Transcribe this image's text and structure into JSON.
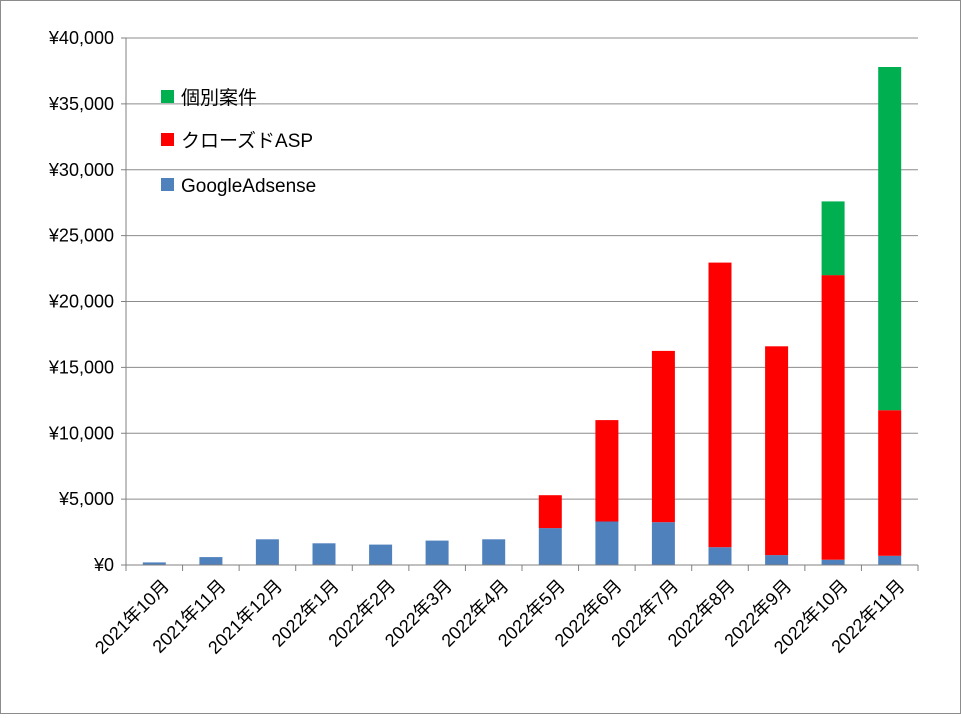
{
  "chart_data": {
    "type": "bar",
    "stacked": true,
    "categories": [
      "2021年10月",
      "2021年11月",
      "2021年12月",
      "2022年1月",
      "2022年2月",
      "2022年3月",
      "2022年4月",
      "2022年5月",
      "2022年6月",
      "2022年7月",
      "2022年8月",
      "2022年9月",
      "2022年10月",
      "2022年11月"
    ],
    "series": [
      {
        "name": "GoogleAdsense",
        "color": "#4f81bd",
        "values": [
          200,
          600,
          1950,
          1650,
          1550,
          1850,
          1950,
          2800,
          3300,
          3250,
          1350,
          750,
          400,
          700
        ]
      },
      {
        "name": "クローズドASP",
        "color": "#ff0000",
        "values": [
          0,
          0,
          0,
          0,
          0,
          0,
          0,
          2500,
          7700,
          13000,
          21600,
          15850,
          21600,
          11050
        ]
      },
      {
        "name": "個別案件",
        "color": "#00b050",
        "values": [
          0,
          0,
          0,
          0,
          0,
          0,
          0,
          0,
          0,
          0,
          0,
          0,
          5600,
          26050
        ]
      }
    ],
    "ylim": [
      0,
      40000
    ],
    "yticks": [
      0,
      5000,
      10000,
      15000,
      20000,
      25000,
      30000,
      35000,
      40000
    ],
    "ytick_labels": [
      "¥0",
      "¥5,000",
      "¥10,000",
      "¥15,000",
      "¥20,000",
      "¥25,000",
      "¥30,000",
      "¥35,000",
      "¥40,000"
    ],
    "grid": true,
    "legend": {
      "position": "top-left",
      "order": [
        "個別案件",
        "クローズドASP",
        "GoogleAdsense"
      ]
    },
    "title": "",
    "xlabel": "",
    "ylabel": ""
  }
}
